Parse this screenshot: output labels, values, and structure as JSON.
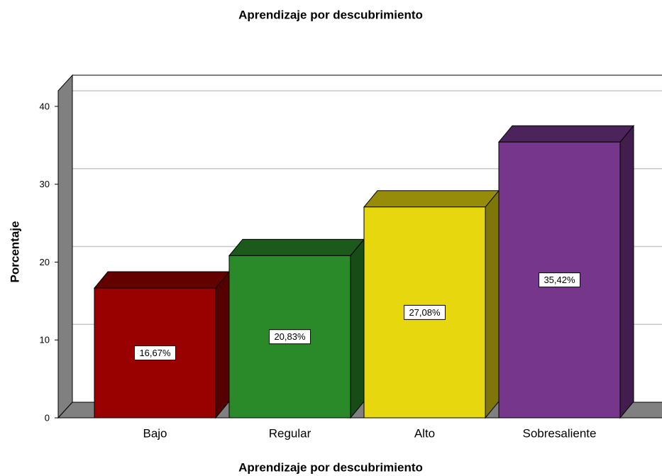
{
  "chart_data": {
    "type": "bar3d",
    "title": "Aprendizaje por descubrimiento",
    "xlabel": "Aprendizaje por descubrimiento",
    "ylabel": "Porcentaje",
    "categories": [
      "Bajo",
      "Regular",
      "Alto",
      "Sobresaliente"
    ],
    "values": [
      16.67,
      20.83,
      27.08,
      35.42
    ],
    "value_labels": [
      "16,67%",
      "20,83%",
      "27,08%",
      "35,42%"
    ],
    "colors": [
      "#990000",
      "#2a8a2a",
      "#e6d70f",
      "#76368c"
    ],
    "ylim": [
      0,
      42
    ],
    "yticks": [
      0,
      10,
      20,
      30,
      40
    ],
    "grid": true
  }
}
